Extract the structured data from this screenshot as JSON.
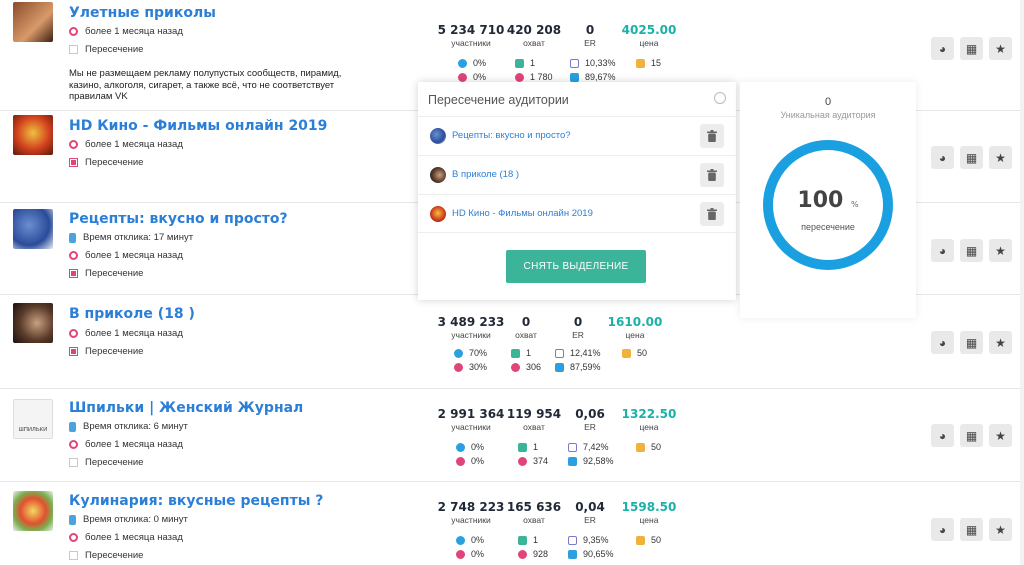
{
  "rows": [
    {
      "title": "Улетные приколы",
      "time_ago": "более 1 месяца назад",
      "response": "",
      "intersect_label": "Пересечение",
      "intersect_checked": false,
      "description": "Мы не размещаем рекламу полупустых сообществ, пирамид, казино, алкоголя, сигарет, а также всё, что не соответствует правилам VK",
      "members": "5 234 710",
      "members_label": "участники",
      "reach": "420 208",
      "reach_label": "охват",
      "er": "0",
      "er_label": "ER",
      "price": "4025.00",
      "price_label": "цена",
      "male": "0%",
      "female": "0%",
      "comments": "1",
      "likes": "1 780",
      "mobile": "10,33%",
      "desktop": "89,67%",
      "ads": "15"
    },
    {
      "title": "HD Кино - Фильмы онлайн 2019",
      "time_ago": "более 1 месяца назад",
      "intersect_label": "Пересечение",
      "intersect_checked": true
    },
    {
      "title": "Рецепты: вкусно и просто?",
      "response": "Время отклика: 17 минут",
      "time_ago": "более 1 месяца назад",
      "intersect_label": "Пересечение",
      "intersect_checked": true
    },
    {
      "title": "В приколе (18 )",
      "time_ago": "более 1 месяца назад",
      "intersect_label": "Пересечение",
      "intersect_checked": true,
      "members": "3 489 233",
      "members_label": "участники",
      "reach": "0",
      "reach_label": "охват",
      "er": "0",
      "er_label": "ER",
      "price": "1610.00",
      "price_label": "цена",
      "male": "70%",
      "female": "30%",
      "comments": "1",
      "likes": "306",
      "mobile": "12,41%",
      "desktop": "87,59%",
      "ads": "50"
    },
    {
      "title": "Шпильки | Женский Журнал",
      "response": "Время отклика: 6 минут",
      "time_ago": "более 1 месяца назад",
      "intersect_label": "Пересечение",
      "intersect_checked": false,
      "avatar_text": "ШПИЛЬКИ",
      "members": "2 991 364",
      "members_label": "участники",
      "reach": "119 954",
      "reach_label": "охват",
      "er": "0,06",
      "er_label": "ER",
      "price": "1322.50",
      "price_label": "цена",
      "male": "0%",
      "female": "0%",
      "comments": "1",
      "likes": "374",
      "mobile": "7,42%",
      "desktop": "92,58%",
      "ads": "50"
    },
    {
      "title": "Кулинария: вкусные рецепты ?",
      "response": "Время отклика: 0 минут",
      "time_ago": "более 1 месяца назад",
      "intersect_label": "Пересечение",
      "intersect_checked": false,
      "members": "2 748 223",
      "members_label": "участники",
      "reach": "165 636",
      "reach_label": "охват",
      "er": "0,04",
      "er_label": "ER",
      "price": "1598.50",
      "price_label": "цена",
      "male": "0%",
      "female": "0%",
      "comments": "1",
      "likes": "928",
      "mobile": "9,35%",
      "desktop": "90,65%",
      "ads": "50"
    }
  ],
  "popup": {
    "title": "Пересечение аудитории",
    "items": [
      {
        "label": "Рецепты: вкусно и просто?"
      },
      {
        "label": "В приколе (18 )"
      },
      {
        "label": "HD Кино - Фильмы онлайн 2019"
      }
    ],
    "clear_button": "СНЯТЬ ВЫДЕЛЕНИЕ"
  },
  "audience": {
    "unique_count": "0",
    "unique_label": "Уникальная аудитория",
    "percent": "100",
    "percent_sign": "%",
    "percent_label": "пересечение"
  },
  "colors": {
    "accent_blue": "#2b7fd6",
    "price_teal": "#1ab1a8",
    "button_green": "#3bb49a",
    "ring_blue": "#1aa0e0",
    "pink": "#e0457a"
  }
}
